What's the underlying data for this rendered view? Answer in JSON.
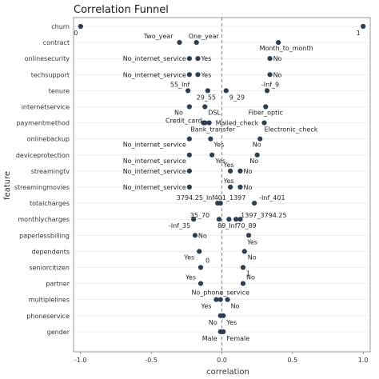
{
  "chart_data": {
    "type": "scatter",
    "title": "Correlation Funnel",
    "xlabel": "correlation",
    "ylabel": "feature",
    "xlim": [
      -1.05,
      1.05
    ],
    "xticks": [
      "-1.0",
      "-0.5",
      "0.0",
      "0.5",
      "1.0"
    ],
    "xtick_values": [
      -1.0,
      -0.5,
      0.0,
      0.5,
      1.0
    ],
    "reference_line": 0,
    "grid": "horizontal",
    "point_color": "#2c3e50",
    "reference_color": "#e74c3c",
    "features": [
      "churn",
      "contract",
      "onlinesecurity",
      "techsupport",
      "tenure",
      "internetservice",
      "paymentmethod",
      "onlinebackup",
      "deviceprotection",
      "streamingtv",
      "streamingmovies",
      "totalcharges",
      "monthlycharges",
      "paperlessbilling",
      "dependents",
      "seniorcitizen",
      "partner",
      "multiplelines",
      "phoneservice",
      "gender"
    ],
    "points": [
      {
        "feature": "churn",
        "x": -1.0,
        "label": "0"
      },
      {
        "feature": "churn",
        "x": 1.0,
        "label": "1"
      },
      {
        "feature": "contract",
        "x": -0.3,
        "label": "Two_year"
      },
      {
        "feature": "contract",
        "x": -0.18,
        "label": "One_year"
      },
      {
        "feature": "contract",
        "x": 0.4,
        "label": "Month_to_month"
      },
      {
        "feature": "onlinesecurity",
        "x": -0.23,
        "label": "No_internet_service"
      },
      {
        "feature": "onlinesecurity",
        "x": -0.17,
        "label": "Yes"
      },
      {
        "feature": "onlinesecurity",
        "x": 0.34,
        "label": "No"
      },
      {
        "feature": "techsupport",
        "x": -0.23,
        "label": "No_internet_service"
      },
      {
        "feature": "techsupport",
        "x": -0.17,
        "label": "Yes"
      },
      {
        "feature": "techsupport",
        "x": 0.34,
        "label": "No"
      },
      {
        "feature": "tenure",
        "x": -0.24,
        "label": "55_Inf"
      },
      {
        "feature": "tenure",
        "x": -0.1,
        "label": "29_55"
      },
      {
        "feature": "tenure",
        "x": 0.03,
        "label": "9_29"
      },
      {
        "feature": "tenure",
        "x": 0.32,
        "label": "-Inf_9"
      },
      {
        "feature": "internetservice",
        "x": -0.23,
        "label": "No"
      },
      {
        "feature": "internetservice",
        "x": -0.12,
        "label": "DSL"
      },
      {
        "feature": "internetservice",
        "x": 0.31,
        "label": "Fiber_optic"
      },
      {
        "feature": "paymentmethod",
        "x": -0.13,
        "label": "Credit_card"
      },
      {
        "feature": "paymentmethod",
        "x": -0.12,
        "label": "Bank_transfer"
      },
      {
        "feature": "paymentmethod",
        "x": -0.09,
        "label": "Mailed_check"
      },
      {
        "feature": "paymentmethod",
        "x": 0.3,
        "label": "Electronic_check"
      },
      {
        "feature": "onlinebackup",
        "x": -0.23,
        "label": "No_internet_service"
      },
      {
        "feature": "onlinebackup",
        "x": -0.08,
        "label": "Yes"
      },
      {
        "feature": "onlinebackup",
        "x": 0.27,
        "label": "No"
      },
      {
        "feature": "deviceprotection",
        "x": -0.23,
        "label": "No_internet_service"
      },
      {
        "feature": "deviceprotection",
        "x": -0.07,
        "label": "Yes"
      },
      {
        "feature": "deviceprotection",
        "x": 0.25,
        "label": "No"
      },
      {
        "feature": "streamingtv",
        "x": -0.23,
        "label": "No_internet_service"
      },
      {
        "feature": "streamingtv",
        "x": 0.06,
        "label": "Yes"
      },
      {
        "feature": "streamingtv",
        "x": 0.13,
        "label": "No"
      },
      {
        "feature": "streamingmovies",
        "x": -0.23,
        "label": "No_internet_service"
      },
      {
        "feature": "streamingmovies",
        "x": 0.06,
        "label": "Yes"
      },
      {
        "feature": "streamingmovies",
        "x": 0.13,
        "label": "No"
      },
      {
        "feature": "totalcharges",
        "x": -0.03,
        "label": "3794.25_Inf"
      },
      {
        "feature": "totalcharges",
        "x": -0.01,
        "label": "401_1397"
      },
      {
        "feature": "totalcharges",
        "x": 0.23,
        "label": "-Inf_401"
      },
      {
        "feature": "monthlycharges",
        "x": -0.02,
        "label": "35_70"
      },
      {
        "feature": "monthlycharges",
        "x": 0.1,
        "label": "1397_3794.25"
      },
      {
        "feature": "monthlycharges",
        "x": -0.2,
        "label": "-Inf_35"
      },
      {
        "feature": "monthlycharges",
        "x": 0.05,
        "label": "89_Inf"
      },
      {
        "feature": "monthlycharges",
        "x": 0.13,
        "label": "70_89"
      },
      {
        "feature": "paperlessbilling",
        "x": -0.19,
        "label": "No"
      },
      {
        "feature": "paperlessbilling",
        "x": 0.19,
        "label": "Yes"
      },
      {
        "feature": "dependents",
        "x": -0.16,
        "label": "Yes"
      },
      {
        "feature": "dependents",
        "x": 0.16,
        "label": "No"
      },
      {
        "feature": "seniorcitizen",
        "x": -0.15,
        "label": "0"
      },
      {
        "feature": "seniorcitizen",
        "x": 0.15,
        "label": "1"
      },
      {
        "feature": "partner",
        "x": -0.15,
        "label": "Yes"
      },
      {
        "feature": "partner",
        "x": 0.15,
        "label": "No"
      },
      {
        "feature": "multiplelines",
        "x": -0.04,
        "label": "Yes"
      },
      {
        "feature": "multiplelines",
        "x": -0.01,
        "label": "No_phone_service"
      },
      {
        "feature": "multiplelines",
        "x": 0.04,
        "label": "No"
      },
      {
        "feature": "phoneservice",
        "x": -0.01,
        "label": "No"
      },
      {
        "feature": "phoneservice",
        "x": 0.01,
        "label": "Yes"
      },
      {
        "feature": "gender",
        "x": -0.01,
        "label": "Male"
      },
      {
        "feature": "gender",
        "x": 0.01,
        "label": "Female"
      }
    ]
  }
}
